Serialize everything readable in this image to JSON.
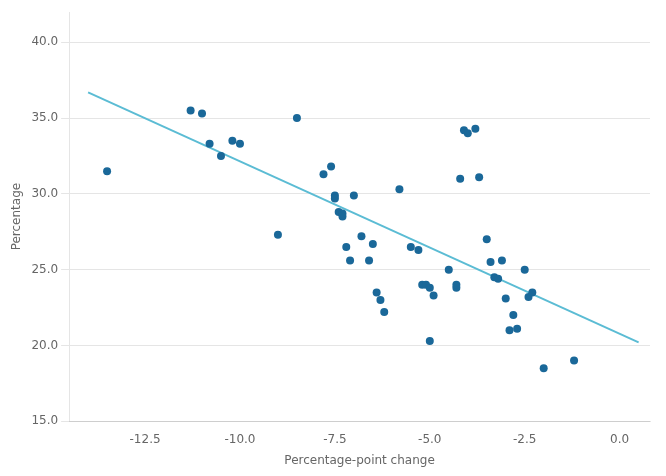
{
  "chart_data": {
    "type": "scatter",
    "x_label": "Percentage-point change",
    "y_label": "Percentage",
    "series": [
      {
        "type": "scatter",
        "color": "#1a6899",
        "x": [
          -13.5,
          -11.3,
          -11.0,
          -10.8,
          -10.5,
          -10.2,
          -10.0,
          -9.0,
          -8.5,
          -7.8,
          -7.6,
          -7.5,
          -7.5,
          -7.4,
          -7.3,
          -7.3,
          -7.2,
          -7.1,
          -7.0,
          -6.8,
          -6.6,
          -6.5,
          -6.4,
          -6.3,
          -6.2,
          -5.8,
          -5.5,
          -5.3,
          -5.2,
          -5.1,
          -5.0,
          -5.0,
          -4.9,
          -4.5,
          -4.3,
          -4.3,
          -4.2,
          -4.1,
          -4.0,
          -3.8,
          -3.7,
          -3.5,
          -3.4,
          -3.3,
          -3.2,
          -3.1,
          -3.0,
          -2.9,
          -2.8,
          -2.7,
          -2.5,
          -2.4,
          -2.3,
          -2.0,
          -1.2
        ],
        "values": [
          31.5,
          35.5,
          35.3,
          33.3,
          32.5,
          33.5,
          33.3,
          27.3,
          35.0,
          31.3,
          31.8,
          29.9,
          29.7,
          28.8,
          28.7,
          28.5,
          26.5,
          25.6,
          29.9,
          27.2,
          25.6,
          26.7,
          23.5,
          23.0,
          22.2,
          30.3,
          26.5,
          26.3,
          24.0,
          24.0,
          20.3,
          23.8,
          23.3,
          25.0,
          23.8,
          24.0,
          31.0,
          34.2,
          34.0,
          34.3,
          31.1,
          27.0,
          25.5,
          24.5,
          24.4,
          25.6,
          23.1,
          21.0,
          22.0,
          21.1,
          25.0,
          23.2,
          23.5,
          18.5,
          19.0
        ]
      },
      {
        "type": "line",
        "color": "#5bbcd4",
        "x": [
          -14.0,
          0.5
        ],
        "values": [
          36.7,
          20.2
        ]
      }
    ],
    "xlim": [
      -14.5,
      0.8
    ],
    "ylim": [
      15.0,
      42.0
    ],
    "xticks": [
      -12.5,
      {
        "value": -10.0,
        "label": "-10.0"
      },
      -7.5,
      {
        "value": -5.0,
        "label": "-5.0"
      },
      -2.5,
      {
        "value": 0.0,
        "label": "0.0"
      }
    ],
    "yticks": [
      {
        "value": 15.0,
        "label": "15.0"
      },
      {
        "value": 20.0,
        "label": "20.0"
      },
      {
        "value": 25.0,
        "label": "25.0"
      },
      {
        "value": 30.0,
        "label": "30.0"
      },
      {
        "value": 35.0,
        "label": "35.0"
      },
      {
        "value": 40.0,
        "label": "40.0"
      }
    ],
    "grid": "y"
  }
}
